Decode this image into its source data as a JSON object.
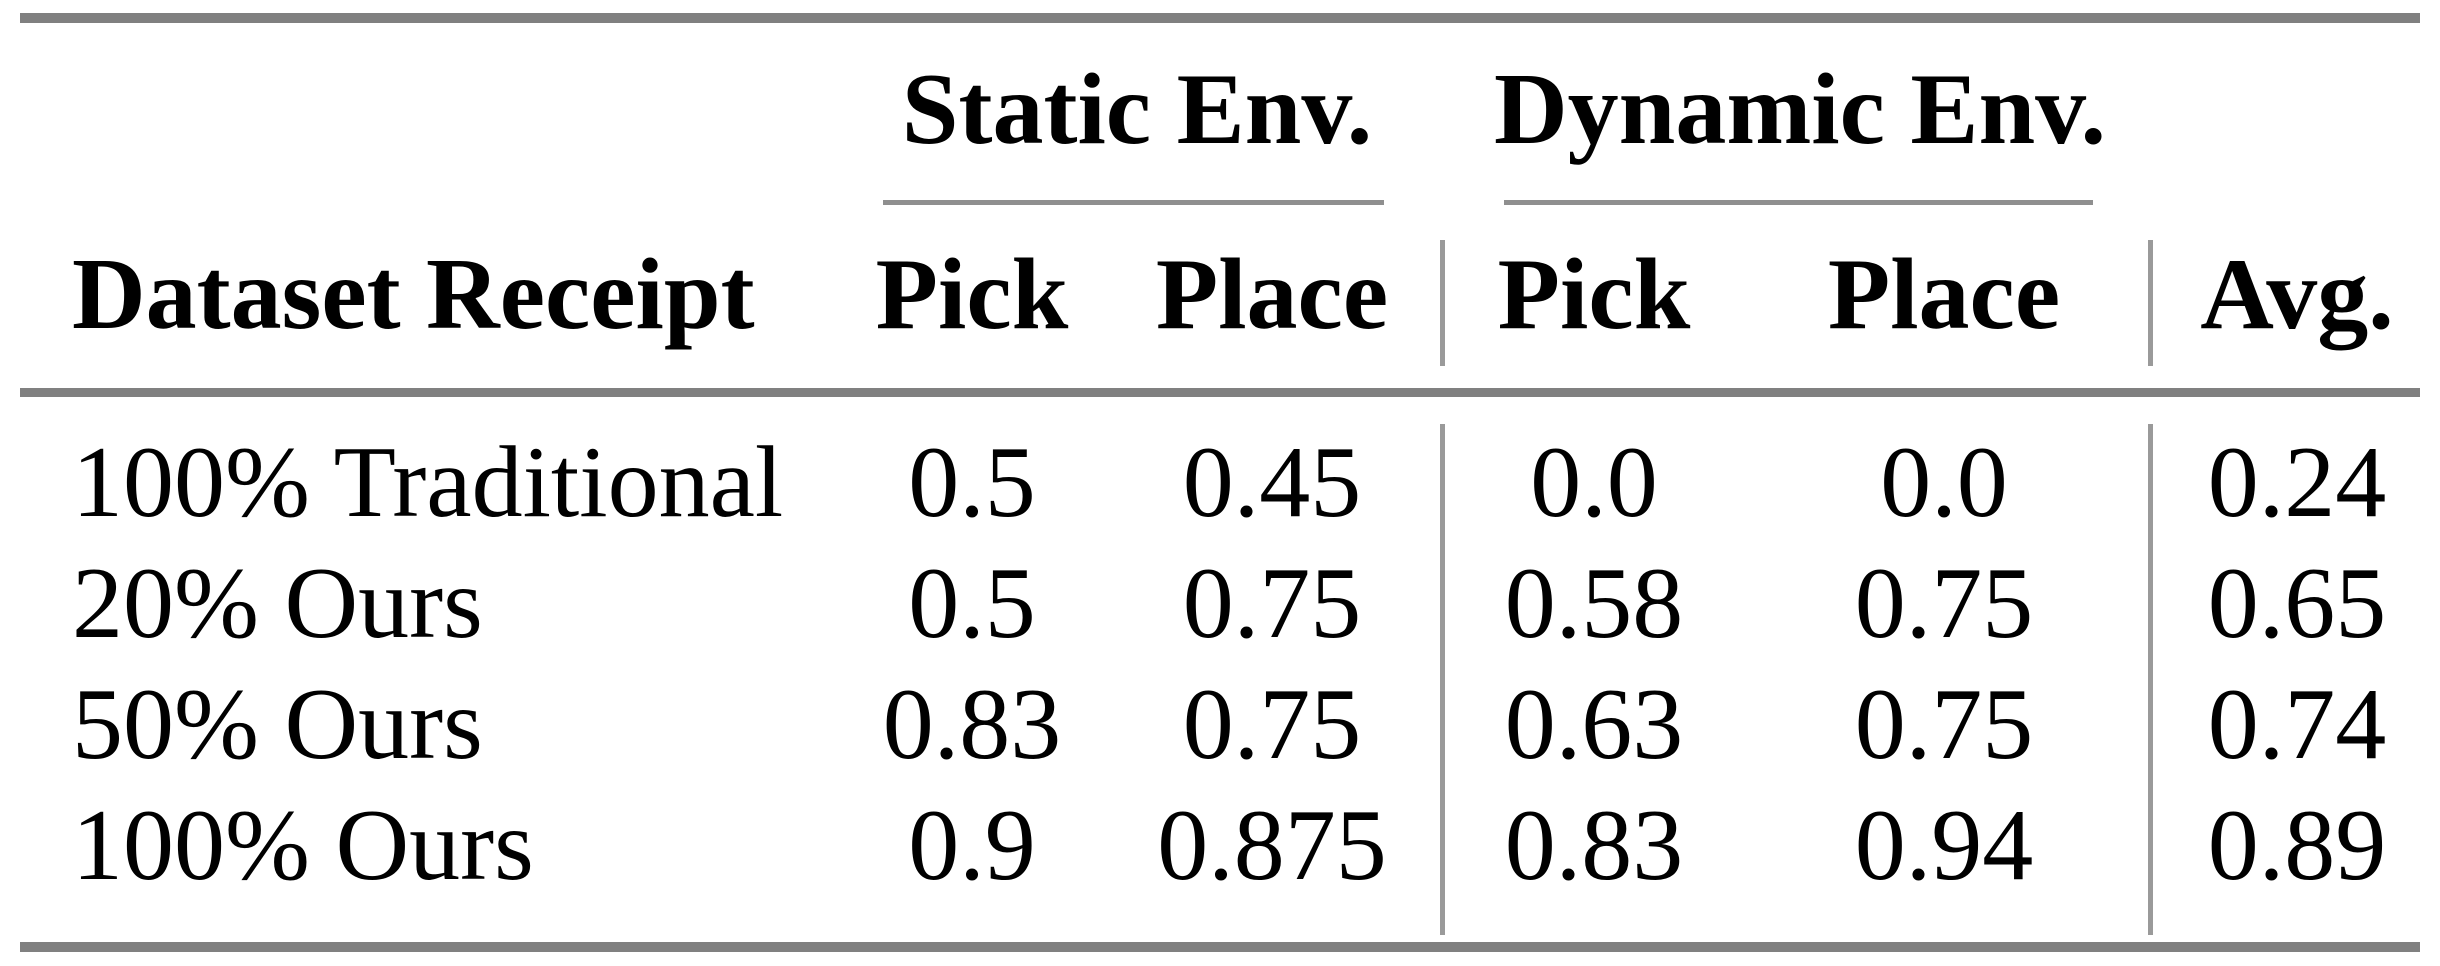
{
  "table": {
    "groups": {
      "static": "Static Env.",
      "dynamic": "Dynamic Env."
    },
    "columns": {
      "dataset": "Dataset Receipt",
      "pick": "Pick",
      "place": "Place",
      "avg": "Avg."
    },
    "rows": [
      {
        "label": "100% Traditional",
        "static_pick": "0.5",
        "static_place": "0.45",
        "dynamic_pick": "0.0",
        "dynamic_place": "0.0",
        "avg": "0.24"
      },
      {
        "label": "20% Ours",
        "static_pick": "0.5",
        "static_place": "0.75",
        "dynamic_pick": "0.58",
        "dynamic_place": "0.75",
        "avg": "0.65"
      },
      {
        "label": "50% Ours",
        "static_pick": "0.83",
        "static_place": "0.75",
        "dynamic_pick": "0.63",
        "dynamic_place": "0.75",
        "avg": "0.74"
      },
      {
        "label": "100% Ours",
        "static_pick": "0.9",
        "static_place": "0.875",
        "dynamic_pick": "0.83",
        "dynamic_place": "0.94",
        "avg": "0.89"
      }
    ],
    "colors": {
      "heavy_rule": "#808080",
      "light_rule": "#8f8f8f",
      "vertical_rule": "#9a9a9a",
      "text": "#000000",
      "background": "#ffffff"
    }
  },
  "chart_data": {
    "type": "table",
    "title": "",
    "column_groups": [
      "",
      "Static Env.",
      "Static Env.",
      "Dynamic Env.",
      "Dynamic Env.",
      ""
    ],
    "columns": [
      "Dataset Receipt",
      "Pick",
      "Place",
      "Pick",
      "Place",
      "Avg."
    ],
    "rows": [
      [
        "100% Traditional",
        0.5,
        0.45,
        0.0,
        0.0,
        0.24
      ],
      [
        "20% Ours",
        0.5,
        0.75,
        0.58,
        0.75,
        0.65
      ],
      [
        "50% Ours",
        0.83,
        0.75,
        0.63,
        0.75,
        0.74
      ],
      [
        "100% Ours",
        0.9,
        0.875,
        0.83,
        0.94,
        0.89
      ]
    ]
  }
}
